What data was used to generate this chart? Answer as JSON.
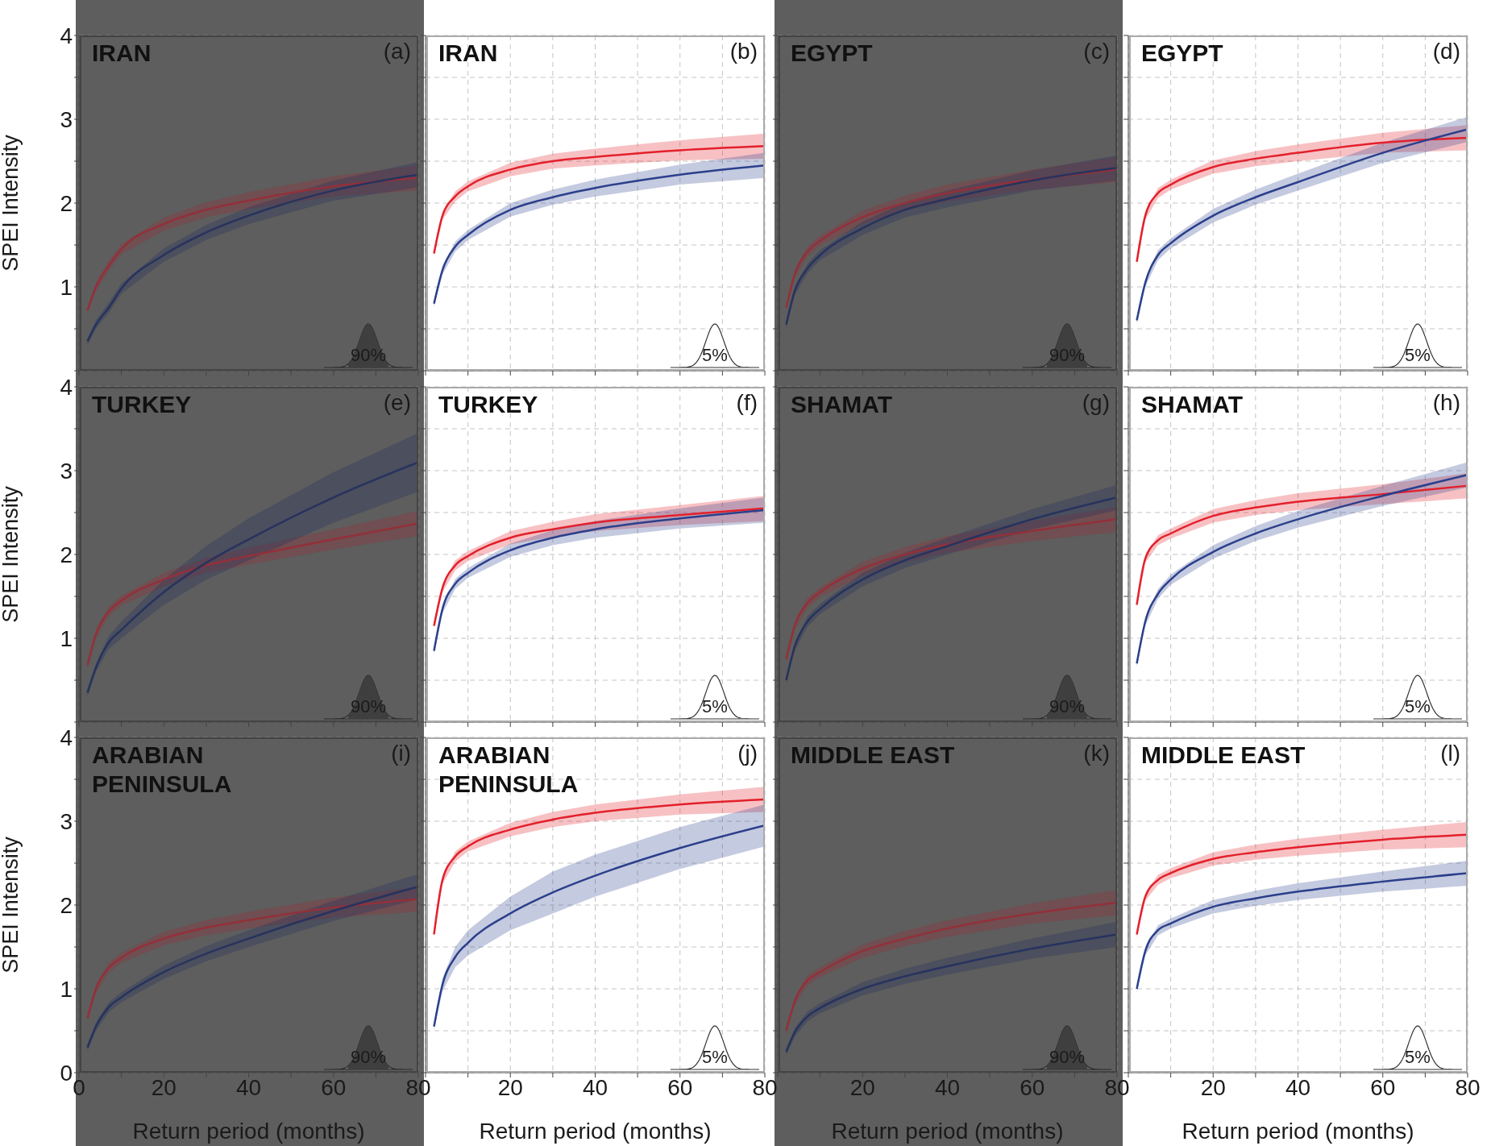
{
  "chart_data": [
    {
      "type": "line",
      "title": "IRAN",
      "ylabel": "SPEI Intensity",
      "annotations": [
        "(a)",
        "90%"
      ],
      "x": [
        2,
        4,
        7,
        10,
        20,
        30,
        40,
        60,
        80
      ],
      "xlim": [
        0,
        80
      ],
      "ylim": [
        0,
        4
      ],
      "xticks": [
        0,
        {
          "value": 10,
          "label": null
        },
        20,
        {
          "value": 30,
          "label": null
        },
        40,
        {
          "value": 50,
          "label": null
        },
        60,
        {
          "value": 70,
          "label": null
        },
        80
      ],
      "yticks": [
        {
          "value": 0,
          "label": null
        },
        {
          "value": 0.5,
          "label": null
        },
        1,
        {
          "value": 1.5,
          "label": null
        },
        2,
        {
          "value": 2.5,
          "label": null
        },
        3,
        {
          "value": 3.5,
          "label": null
        },
        4
      ],
      "tick_labels": "y",
      "grid": true,
      "bands": [
        {
          "axis": "x",
          "from": 0,
          "to": 80,
          "color": "#5e5e5e"
        }
      ],
      "series": [
        {
          "color": "#93303a",
          "values": [
            0.72,
            1.0,
            1.25,
            1.45,
            1.75,
            1.92,
            2.03,
            2.2,
            2.3
          ],
          "lower": [
            0.68,
            0.95,
            1.19,
            1.39,
            1.67,
            1.83,
            1.93,
            2.08,
            2.15
          ],
          "upper": [
            0.76,
            1.05,
            1.31,
            1.51,
            1.83,
            2.01,
            2.13,
            2.32,
            2.45
          ]
        },
        {
          "color": "#27335e",
          "values": [
            0.35,
            0.55,
            0.75,
            0.98,
            1.38,
            1.65,
            1.85,
            2.15,
            2.34
          ],
          "lower": [
            0.31,
            0.5,
            0.69,
            0.92,
            1.3,
            1.56,
            1.75,
            2.03,
            2.19
          ],
          "upper": [
            0.39,
            0.6,
            0.81,
            1.04,
            1.46,
            1.74,
            1.95,
            2.27,
            2.49
          ]
        }
      ]
    },
    {
      "type": "line",
      "title": "IRAN",
      "annotations": [
        "(b)",
        "5%"
      ],
      "x": [
        2,
        4,
        7,
        10,
        20,
        30,
        40,
        60,
        80
      ],
      "xlim": [
        0,
        80
      ],
      "ylim": [
        0,
        4
      ],
      "xticks": [
        0,
        {
          "value": 10,
          "label": null
        },
        20,
        {
          "value": 30,
          "label": null
        },
        40,
        {
          "value": 50,
          "label": null
        },
        60,
        {
          "value": 70,
          "label": null
        },
        80
      ],
      "yticks": [
        {
          "value": 0,
          "label": null
        },
        {
          "value": 0.5,
          "label": null
        },
        1,
        {
          "value": 1.5,
          "label": null
        },
        2,
        {
          "value": 2.5,
          "label": null
        },
        3,
        {
          "value": 3.5,
          "label": null
        },
        4
      ],
      "tick_labels": false,
      "grid": true,
      "series": [
        {
          "color": "#e3202b",
          "values": [
            1.4,
            1.85,
            2.08,
            2.2,
            2.4,
            2.5,
            2.55,
            2.63,
            2.68
          ],
          "lower": [
            1.36,
            1.8,
            2.02,
            2.14,
            2.32,
            2.41,
            2.45,
            2.51,
            2.53
          ],
          "upper": [
            1.44,
            1.9,
            2.14,
            2.26,
            2.48,
            2.59,
            2.65,
            2.75,
            2.83
          ]
        },
        {
          "color": "#2b3f8c",
          "values": [
            0.8,
            1.2,
            1.48,
            1.62,
            1.92,
            2.07,
            2.18,
            2.34,
            2.45
          ],
          "lower": [
            0.76,
            1.15,
            1.42,
            1.56,
            1.84,
            1.98,
            2.08,
            2.22,
            2.3
          ],
          "upper": [
            0.84,
            1.25,
            1.54,
            1.68,
            2.0,
            2.16,
            2.28,
            2.46,
            2.6
          ]
        }
      ]
    },
    {
      "type": "line",
      "title": "EGYPT",
      "annotations": [
        "(c)",
        "90%"
      ],
      "x": [
        2,
        4,
        7,
        10,
        20,
        30,
        40,
        60,
        80
      ],
      "xlim": [
        0,
        80
      ],
      "ylim": [
        0,
        4
      ],
      "xticks": [
        0,
        {
          "value": 10,
          "label": null
        },
        20,
        {
          "value": 30,
          "label": null
        },
        40,
        {
          "value": 50,
          "label": null
        },
        60,
        {
          "value": 70,
          "label": null
        },
        80
      ],
      "yticks": [
        {
          "value": 0,
          "label": null
        },
        {
          "value": 0.5,
          "label": null
        },
        1,
        {
          "value": 1.5,
          "label": null
        },
        2,
        {
          "value": 2.5,
          "label": null
        },
        3,
        {
          "value": 3.5,
          "label": null
        },
        4
      ],
      "tick_labels": false,
      "grid": true,
      "bands": [
        {
          "axis": "x",
          "from": 0,
          "to": 80,
          "color": "#5e5e5e"
        }
      ],
      "series": [
        {
          "color": "#93303a",
          "values": [
            0.75,
            1.15,
            1.42,
            1.55,
            1.83,
            2.0,
            2.12,
            2.28,
            2.4
          ],
          "lower": [
            0.71,
            1.1,
            1.36,
            1.49,
            1.75,
            1.91,
            2.02,
            2.16,
            2.25
          ],
          "upper": [
            0.79,
            1.2,
            1.48,
            1.61,
            1.91,
            2.09,
            2.22,
            2.4,
            2.55
          ]
        },
        {
          "color": "#27335e",
          "values": [
            0.55,
            0.95,
            1.22,
            1.38,
            1.7,
            1.92,
            2.05,
            2.27,
            2.42
          ],
          "lower": [
            0.51,
            0.9,
            1.16,
            1.32,
            1.62,
            1.83,
            1.95,
            2.15,
            2.27
          ],
          "upper": [
            0.59,
            1.0,
            1.28,
            1.44,
            1.78,
            2.01,
            2.15,
            2.39,
            2.57
          ]
        }
      ]
    },
    {
      "type": "line",
      "title": "EGYPT",
      "annotations": [
        "(d)",
        "5%"
      ],
      "x": [
        2,
        4,
        7,
        10,
        20,
        30,
        40,
        60,
        80
      ],
      "xlim": [
        0,
        80
      ],
      "ylim": [
        0,
        4
      ],
      "xticks": [
        0,
        {
          "value": 10,
          "label": null
        },
        20,
        {
          "value": 30,
          "label": null
        },
        40,
        {
          "value": 50,
          "label": null
        },
        60,
        {
          "value": 70,
          "label": null
        },
        80
      ],
      "yticks": [
        {
          "value": 0,
          "label": null
        },
        {
          "value": 0.5,
          "label": null
        },
        1,
        {
          "value": 1.5,
          "label": null
        },
        2,
        {
          "value": 2.5,
          "label": null
        },
        3,
        {
          "value": 3.5,
          "label": null
        },
        4
      ],
      "tick_labels": false,
      "grid": true,
      "series": [
        {
          "color": "#e3202b",
          "values": [
            1.3,
            1.85,
            2.12,
            2.22,
            2.43,
            2.53,
            2.6,
            2.72,
            2.78
          ],
          "lower": [
            1.26,
            1.8,
            2.06,
            2.16,
            2.35,
            2.44,
            2.5,
            2.6,
            2.63
          ],
          "upper": [
            1.34,
            1.9,
            2.18,
            2.28,
            2.51,
            2.62,
            2.7,
            2.84,
            2.93
          ]
        },
        {
          "color": "#2b3f8c",
          "values": [
            0.6,
            1.05,
            1.38,
            1.52,
            1.85,
            2.07,
            2.25,
            2.6,
            2.88
          ],
          "lower": [
            0.56,
            1.0,
            1.32,
            1.46,
            1.77,
            1.98,
            2.15,
            2.48,
            2.73
          ],
          "upper": [
            0.64,
            1.1,
            1.44,
            1.58,
            1.93,
            2.16,
            2.35,
            2.72,
            3.03
          ]
        }
      ]
    },
    {
      "type": "line",
      "title": "TURKEY",
      "ylabel": "SPEI Intensity",
      "annotations": [
        "(e)",
        "90%"
      ],
      "x": [
        2,
        4,
        7,
        10,
        20,
        30,
        40,
        60,
        80
      ],
      "xlim": [
        0,
        80
      ],
      "ylim": [
        0,
        4
      ],
      "xticks": [
        0,
        {
          "value": 10,
          "label": null
        },
        20,
        {
          "value": 30,
          "label": null
        },
        40,
        {
          "value": 50,
          "label": null
        },
        60,
        {
          "value": 70,
          "label": null
        },
        80
      ],
      "yticks": [
        {
          "value": 0,
          "label": null
        },
        {
          "value": 0.5,
          "label": null
        },
        1,
        {
          "value": 1.5,
          "label": null
        },
        2,
        {
          "value": 2.5,
          "label": null
        },
        3,
        {
          "value": 3.5,
          "label": null
        },
        4
      ],
      "tick_labels": "y",
      "grid": true,
      "bands": [
        {
          "axis": "x",
          "from": 0,
          "to": 80,
          "color": "#5e5e5e"
        }
      ],
      "series": [
        {
          "color": "#93303a",
          "values": [
            0.68,
            1.05,
            1.32,
            1.45,
            1.7,
            1.87,
            1.98,
            2.18,
            2.37
          ],
          "lower": [
            0.64,
            1.0,
            1.26,
            1.39,
            1.62,
            1.78,
            1.88,
            2.06,
            2.22
          ],
          "upper": [
            0.72,
            1.1,
            1.38,
            1.51,
            1.78,
            1.96,
            2.08,
            2.3,
            2.52
          ]
        },
        {
          "color": "#27335e",
          "values": [
            0.35,
            0.65,
            0.95,
            1.1,
            1.55,
            1.9,
            2.18,
            2.68,
            3.1
          ],
          "lower": [
            0.31,
            0.6,
            0.87,
            1.0,
            1.4,
            1.7,
            1.93,
            2.38,
            2.75
          ],
          "upper": [
            0.39,
            0.7,
            1.03,
            1.2,
            1.7,
            2.1,
            2.43,
            2.98,
            3.45
          ]
        }
      ]
    },
    {
      "type": "line",
      "title": "TURKEY",
      "annotations": [
        "(f)",
        "5%"
      ],
      "x": [
        2,
        4,
        7,
        10,
        20,
        30,
        40,
        60,
        80
      ],
      "xlim": [
        0,
        80
      ],
      "ylim": [
        0,
        4
      ],
      "xticks": [
        0,
        {
          "value": 10,
          "label": null
        },
        20,
        {
          "value": 30,
          "label": null
        },
        40,
        {
          "value": 50,
          "label": null
        },
        60,
        {
          "value": 70,
          "label": null
        },
        80
      ],
      "yticks": [
        {
          "value": 0,
          "label": null
        },
        {
          "value": 0.5,
          "label": null
        },
        1,
        {
          "value": 1.5,
          "label": null
        },
        2,
        {
          "value": 2.5,
          "label": null
        },
        3,
        {
          "value": 3.5,
          "label": null
        },
        4
      ],
      "tick_labels": false,
      "grid": true,
      "series": [
        {
          "color": "#e3202b",
          "values": [
            1.15,
            1.6,
            1.87,
            1.98,
            2.2,
            2.3,
            2.38,
            2.47,
            2.55
          ],
          "lower": [
            1.11,
            1.55,
            1.81,
            1.92,
            2.12,
            2.21,
            2.28,
            2.35,
            2.4
          ],
          "upper": [
            1.19,
            1.65,
            1.93,
            2.04,
            2.28,
            2.39,
            2.48,
            2.59,
            2.7
          ]
        },
        {
          "color": "#2b3f8c",
          "values": [
            0.85,
            1.35,
            1.65,
            1.78,
            2.05,
            2.2,
            2.3,
            2.43,
            2.53
          ],
          "lower": [
            0.81,
            1.3,
            1.59,
            1.72,
            1.97,
            2.11,
            2.2,
            2.31,
            2.38
          ],
          "upper": [
            0.89,
            1.4,
            1.71,
            1.84,
            2.13,
            2.29,
            2.4,
            2.55,
            2.68
          ]
        }
      ]
    },
    {
      "type": "line",
      "title": "SHAMAT",
      "annotations": [
        "(g)",
        "90%"
      ],
      "x": [
        2,
        4,
        7,
        10,
        20,
        30,
        40,
        60,
        80
      ],
      "xlim": [
        0,
        80
      ],
      "ylim": [
        0,
        4
      ],
      "xticks": [
        0,
        {
          "value": 10,
          "label": null
        },
        20,
        {
          "value": 30,
          "label": null
        },
        40,
        {
          "value": 50,
          "label": null
        },
        60,
        {
          "value": 70,
          "label": null
        },
        80
      ],
      "yticks": [
        {
          "value": 0,
          "label": null
        },
        {
          "value": 0.5,
          "label": null
        },
        1,
        {
          "value": 1.5,
          "label": null
        },
        2,
        {
          "value": 2.5,
          "label": null
        },
        3,
        {
          "value": 3.5,
          "label": null
        },
        4
      ],
      "tick_labels": false,
      "grid": true,
      "bands": [
        {
          "axis": "x",
          "from": 0,
          "to": 80,
          "color": "#5e5e5e"
        }
      ],
      "series": [
        {
          "color": "#93303a",
          "values": [
            0.75,
            1.15,
            1.42,
            1.55,
            1.83,
            2.0,
            2.12,
            2.28,
            2.42
          ],
          "lower": [
            0.71,
            1.1,
            1.36,
            1.49,
            1.75,
            1.91,
            2.02,
            2.16,
            2.27
          ],
          "upper": [
            0.79,
            1.2,
            1.48,
            1.61,
            1.91,
            2.09,
            2.22,
            2.4,
            2.57
          ]
        },
        {
          "color": "#27335e",
          "values": [
            0.5,
            0.9,
            1.2,
            1.35,
            1.7,
            1.93,
            2.1,
            2.42,
            2.68
          ],
          "lower": [
            0.46,
            0.85,
            1.14,
            1.29,
            1.62,
            1.84,
            2.0,
            2.3,
            2.53
          ],
          "upper": [
            0.54,
            0.95,
            1.26,
            1.41,
            1.78,
            2.02,
            2.2,
            2.54,
            2.83
          ]
        }
      ]
    },
    {
      "type": "line",
      "title": "SHAMAT",
      "annotations": [
        "(h)",
        "5%"
      ],
      "x": [
        2,
        4,
        7,
        10,
        20,
        30,
        40,
        60,
        80
      ],
      "xlim": [
        0,
        80
      ],
      "ylim": [
        0,
        4
      ],
      "xticks": [
        0,
        {
          "value": 10,
          "label": null
        },
        20,
        {
          "value": 30,
          "label": null
        },
        40,
        {
          "value": 50,
          "label": null
        },
        60,
        {
          "value": 70,
          "label": null
        },
        80
      ],
      "yticks": [
        {
          "value": 0,
          "label": null
        },
        {
          "value": 0.5,
          "label": null
        },
        1,
        {
          "value": 1.5,
          "label": null
        },
        2,
        {
          "value": 2.5,
          "label": null
        },
        3,
        {
          "value": 3.5,
          "label": null
        },
        4
      ],
      "tick_labels": false,
      "grid": true,
      "series": [
        {
          "color": "#e3202b",
          "values": [
            1.4,
            1.95,
            2.17,
            2.25,
            2.46,
            2.56,
            2.63,
            2.72,
            2.82
          ],
          "lower": [
            1.36,
            1.9,
            2.11,
            2.19,
            2.38,
            2.47,
            2.53,
            2.6,
            2.67
          ],
          "upper": [
            1.44,
            2.0,
            2.23,
            2.31,
            2.54,
            2.65,
            2.73,
            2.84,
            2.97
          ]
        },
        {
          "color": "#2b3f8c",
          "values": [
            0.7,
            1.2,
            1.53,
            1.7,
            2.03,
            2.25,
            2.42,
            2.7,
            2.95
          ],
          "lower": [
            0.66,
            1.15,
            1.47,
            1.64,
            1.95,
            2.16,
            2.32,
            2.58,
            2.8
          ],
          "upper": [
            0.74,
            1.25,
            1.59,
            1.76,
            2.11,
            2.34,
            2.52,
            2.82,
            3.1
          ]
        }
      ]
    },
    {
      "type": "line",
      "title": "ARABIAN PENINSULA",
      "xlabel": "Return period (months)",
      "ylabel": "SPEI Intensity",
      "annotations": [
        "(i)",
        "90%"
      ],
      "x": [
        2,
        4,
        7,
        10,
        20,
        30,
        40,
        60,
        80
      ],
      "xlim": [
        0,
        80
      ],
      "ylim": [
        0,
        4
      ],
      "xticks": [
        0,
        {
          "value": 10,
          "label": null
        },
        20,
        {
          "value": 30,
          "label": null
        },
        40,
        {
          "value": 50,
          "label": null
        },
        60,
        {
          "value": 70,
          "label": null
        },
        80
      ],
      "yticks": [
        0,
        {
          "value": 0.5,
          "label": null
        },
        1,
        {
          "value": 1.5,
          "label": null
        },
        2,
        {
          "value": 2.5,
          "label": null
        },
        3,
        {
          "value": 3.5,
          "label": null
        },
        4
      ],
      "grid": true,
      "bands": [
        {
          "axis": "x",
          "from": 0,
          "to": 80,
          "color": "#5e5e5e"
        }
      ],
      "series": [
        {
          "color": "#93303a",
          "values": [
            0.65,
            1.0,
            1.25,
            1.37,
            1.6,
            1.73,
            1.82,
            1.97,
            2.07
          ],
          "lower": [
            0.61,
            0.95,
            1.19,
            1.31,
            1.52,
            1.64,
            1.72,
            1.85,
            1.92
          ],
          "upper": [
            0.69,
            1.05,
            1.31,
            1.43,
            1.68,
            1.82,
            1.92,
            2.09,
            2.22
          ]
        },
        {
          "color": "#27335e",
          "values": [
            0.3,
            0.55,
            0.78,
            0.9,
            1.2,
            1.42,
            1.6,
            1.93,
            2.22
          ],
          "lower": [
            0.26,
            0.5,
            0.72,
            0.84,
            1.12,
            1.33,
            1.5,
            1.81,
            2.07
          ],
          "upper": [
            0.34,
            0.6,
            0.84,
            0.96,
            1.28,
            1.51,
            1.7,
            2.05,
            2.37
          ]
        }
      ]
    },
    {
      "type": "line",
      "title": "ARABIAN PENINSULA",
      "xlabel": "Return period (months)",
      "annotations": [
        "(j)",
        "5%"
      ],
      "x": [
        2,
        4,
        7,
        10,
        20,
        30,
        40,
        60,
        80
      ],
      "xlim": [
        0,
        80
      ],
      "ylim": [
        0,
        4
      ],
      "xticks": [
        {
          "value": 0,
          "label": null
        },
        {
          "value": 10,
          "label": null
        },
        20,
        {
          "value": 30,
          "label": null
        },
        40,
        {
          "value": 50,
          "label": null
        },
        60,
        {
          "value": 70,
          "label": null
        },
        80
      ],
      "yticks": [
        0,
        {
          "value": 0.5,
          "label": null
        },
        1,
        {
          "value": 1.5,
          "label": null
        },
        2,
        {
          "value": 2.5,
          "label": null
        },
        3,
        {
          "value": 3.5,
          "label": null
        },
        4
      ],
      "tick_labels": "x",
      "grid": true,
      "series": [
        {
          "color": "#e3202b",
          "values": [
            1.65,
            2.3,
            2.58,
            2.7,
            2.9,
            3.02,
            3.1,
            3.2,
            3.26
          ],
          "lower": [
            1.61,
            2.25,
            2.52,
            2.64,
            2.82,
            2.93,
            3.0,
            3.08,
            3.11
          ],
          "upper": [
            1.69,
            2.35,
            2.64,
            2.76,
            2.98,
            3.11,
            3.2,
            3.32,
            3.41
          ]
        },
        {
          "color": "#2b3f8c",
          "values": [
            0.55,
            1.05,
            1.38,
            1.55,
            1.9,
            2.15,
            2.35,
            2.68,
            2.95
          ],
          "lower": [
            0.51,
            0.97,
            1.26,
            1.4,
            1.7,
            1.9,
            2.1,
            2.43,
            2.7
          ],
          "upper": [
            0.59,
            1.13,
            1.5,
            1.7,
            2.1,
            2.4,
            2.6,
            2.93,
            3.2
          ]
        }
      ]
    },
    {
      "type": "line",
      "title": "MIDDLE EAST",
      "xlabel": "Return period (months)",
      "annotations": [
        "(k)",
        "90%"
      ],
      "x": [
        2,
        4,
        7,
        10,
        20,
        30,
        40,
        60,
        80
      ],
      "xlim": [
        0,
        80
      ],
      "ylim": [
        0,
        4
      ],
      "xticks": [
        {
          "value": 0,
          "label": null
        },
        {
          "value": 10,
          "label": null
        },
        20,
        {
          "value": 30,
          "label": null
        },
        40,
        {
          "value": 50,
          "label": null
        },
        60,
        {
          "value": 70,
          "label": null
        },
        80
      ],
      "yticks": [
        0,
        {
          "value": 0.5,
          "label": null
        },
        1,
        {
          "value": 1.5,
          "label": null
        },
        2,
        {
          "value": 2.5,
          "label": null
        },
        3,
        {
          "value": 3.5,
          "label": null
        },
        4
      ],
      "tick_labels": "x",
      "grid": true,
      "bands": [
        {
          "axis": "x",
          "from": 0,
          "to": 80,
          "color": "#5e5e5e"
        }
      ],
      "series": [
        {
          "color": "#93303a",
          "values": [
            0.5,
            0.85,
            1.1,
            1.2,
            1.45,
            1.6,
            1.72,
            1.9,
            2.03
          ],
          "lower": [
            0.46,
            0.8,
            1.04,
            1.14,
            1.37,
            1.51,
            1.62,
            1.78,
            1.88
          ],
          "upper": [
            0.54,
            0.9,
            1.16,
            1.26,
            1.53,
            1.69,
            1.82,
            2.02,
            2.18
          ]
        },
        {
          "color": "#27335e",
          "values": [
            0.25,
            0.48,
            0.67,
            0.77,
            1.0,
            1.15,
            1.27,
            1.48,
            1.65
          ],
          "lower": [
            0.21,
            0.43,
            0.61,
            0.71,
            0.92,
            1.06,
            1.17,
            1.36,
            1.5
          ],
          "upper": [
            0.29,
            0.53,
            0.73,
            0.83,
            1.08,
            1.24,
            1.37,
            1.6,
            1.8
          ]
        }
      ]
    },
    {
      "type": "line",
      "title": "MIDDLE EAST",
      "xlabel": "Return period (months)",
      "annotations": [
        "(l)",
        "5%"
      ],
      "x": [
        2,
        4,
        7,
        10,
        20,
        30,
        40,
        60,
        80
      ],
      "xlim": [
        0,
        80
      ],
      "ylim": [
        0,
        4
      ],
      "xticks": [
        {
          "value": 0,
          "label": null
        },
        {
          "value": 10,
          "label": null
        },
        20,
        {
          "value": 30,
          "label": null
        },
        40,
        {
          "value": 50,
          "label": null
        },
        60,
        {
          "value": 70,
          "label": null
        },
        80
      ],
      "yticks": [
        0,
        {
          "value": 0.5,
          "label": null
        },
        1,
        {
          "value": 1.5,
          "label": null
        },
        2,
        {
          "value": 2.5,
          "label": null
        },
        3,
        {
          "value": 3.5,
          "label": null
        },
        4
      ],
      "tick_labels": "x",
      "grid": true,
      "series": [
        {
          "color": "#e3202b",
          "values": [
            1.65,
            2.1,
            2.3,
            2.38,
            2.55,
            2.63,
            2.69,
            2.78,
            2.84
          ],
          "lower": [
            1.61,
            2.05,
            2.24,
            2.32,
            2.47,
            2.54,
            2.59,
            2.66,
            2.69
          ],
          "upper": [
            1.69,
            2.15,
            2.36,
            2.44,
            2.63,
            2.72,
            2.79,
            2.9,
            2.99
          ]
        },
        {
          "color": "#2b3f8c",
          "values": [
            1.0,
            1.45,
            1.7,
            1.78,
            1.98,
            2.08,
            2.16,
            2.28,
            2.38
          ],
          "lower": [
            0.96,
            1.4,
            1.64,
            1.72,
            1.9,
            1.99,
            2.06,
            2.16,
            2.23
          ],
          "upper": [
            1.04,
            1.5,
            1.76,
            1.84,
            2.06,
            2.17,
            2.26,
            2.4,
            2.53
          ]
        }
      ]
    }
  ]
}
